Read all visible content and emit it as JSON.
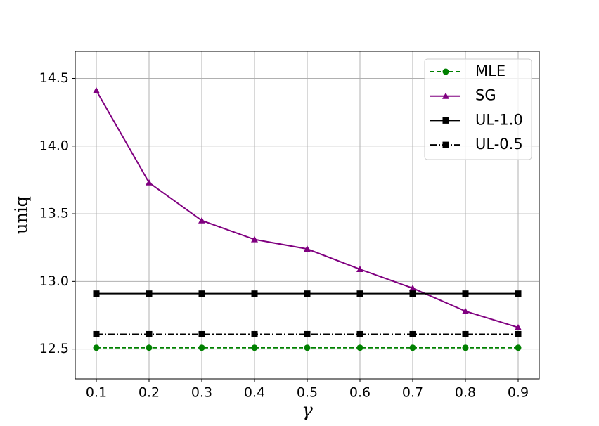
{
  "chart_data": {
    "type": "line",
    "x_label": "γ",
    "y_label": "uniq",
    "x": [
      0.1,
      0.2,
      0.3,
      0.4,
      0.5,
      0.6,
      0.7,
      0.8,
      0.9
    ],
    "series": [
      {
        "name": "MLE",
        "color": "#008000",
        "marker": "circle",
        "linestyle": "dashed",
        "values": [
          12.51,
          12.51,
          12.51,
          12.51,
          12.51,
          12.51,
          12.51,
          12.51,
          12.51
        ]
      },
      {
        "name": "SG",
        "color": "#800080",
        "marker": "triangle",
        "linestyle": "solid",
        "values": [
          14.41,
          13.73,
          13.45,
          13.31,
          13.24,
          13.09,
          12.95,
          12.78,
          12.66
        ]
      },
      {
        "name": "UL-1.0",
        "color": "#000000",
        "marker": "square",
        "linestyle": "solid",
        "values": [
          12.91,
          12.91,
          12.91,
          12.91,
          12.91,
          12.91,
          12.91,
          12.91,
          12.91
        ]
      },
      {
        "name": "UL-0.5",
        "color": "#000000",
        "marker": "square",
        "linestyle": "dashdot",
        "values": [
          12.61,
          12.61,
          12.61,
          12.61,
          12.61,
          12.61,
          12.61,
          12.61,
          12.61
        ]
      }
    ],
    "xlim": [
      0.06,
      0.94
    ],
    "ylim": [
      12.28,
      14.7
    ],
    "xticks": [
      0.1,
      0.2,
      0.3,
      0.4,
      0.5,
      0.6,
      0.7,
      0.8,
      0.9
    ],
    "yticks": [
      12.5,
      {
        "value": 13,
        "label": "13.0"
      },
      13.5,
      {
        "value": 14,
        "label": "14.0"
      },
      14.5
    ],
    "grid": true,
    "legend": "upper right"
  }
}
